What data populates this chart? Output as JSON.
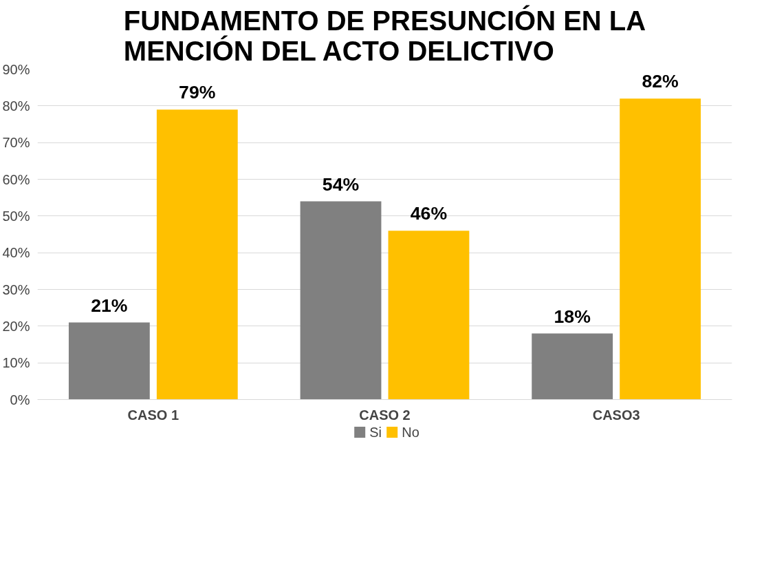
{
  "chart_data": {
    "type": "bar",
    "title": "FUNDAMENTO DE PRESUNCIÓN EN LA MENCIÓN DEL ACTO DELICTIVO",
    "categories": [
      "CASO 1",
      "CASO 2",
      "CASO3"
    ],
    "series": [
      {
        "name": "Si",
        "color": "#808080",
        "values": [
          21,
          54,
          18
        ],
        "value_labels": [
          "21%",
          "54%",
          "18%"
        ]
      },
      {
        "name": "No",
        "color": "#ffc000",
        "values": [
          79,
          46,
          82
        ],
        "value_labels": [
          "79%",
          "46%",
          "82%"
        ]
      }
    ],
    "ylim": [
      0,
      90
    ],
    "yticks": [
      {
        "value": 0,
        "label": "0%"
      },
      {
        "value": 10,
        "label": "10%"
      },
      {
        "value": 20,
        "label": "20%"
      },
      {
        "value": 30,
        "label": "30%"
      },
      {
        "value": 40,
        "label": "40%"
      },
      {
        "value": 50,
        "label": "50%"
      },
      {
        "value": 60,
        "label": "60%"
      },
      {
        "value": 70,
        "label": "70%"
      },
      {
        "value": 80,
        "label": "80%"
      },
      {
        "value": 90,
        "label": "90%"
      }
    ],
    "grid": "y",
    "legend": "bottom"
  }
}
